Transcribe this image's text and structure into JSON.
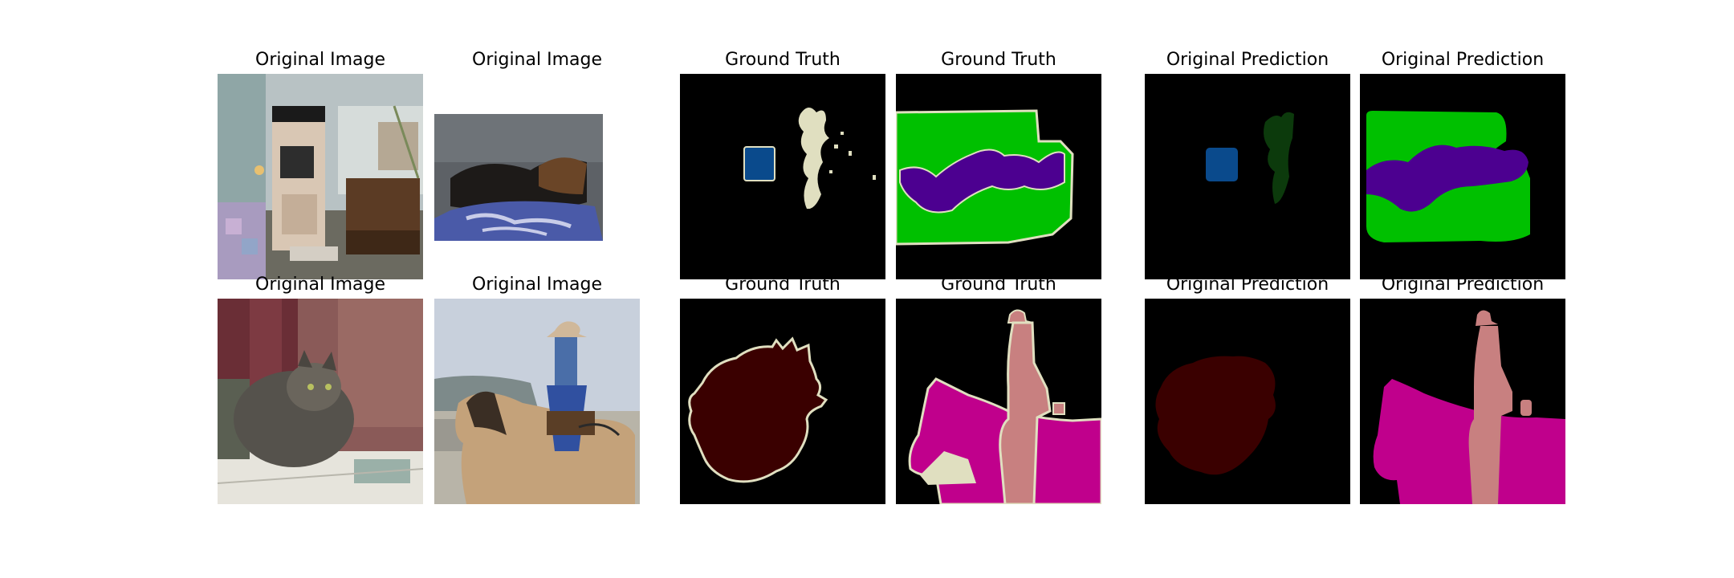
{
  "figure": {
    "panels": [
      {
        "id": "r1c1",
        "title": "Original Image",
        "kind": "photo",
        "subject": "living-room"
      },
      {
        "id": "r1c2",
        "title": "Original Image",
        "kind": "photo",
        "subject": "dogs-on-sofa"
      },
      {
        "id": "r1c3",
        "title": "Ground Truth",
        "kind": "mask",
        "subject": "room-gt"
      },
      {
        "id": "r1c4",
        "title": "Ground Truth",
        "kind": "mask",
        "subject": "sofa-gt"
      },
      {
        "id": "r1c5",
        "title": "Original Prediction",
        "kind": "mask",
        "subject": "room-pred"
      },
      {
        "id": "r1c6",
        "title": "Original Prediction",
        "kind": "mask",
        "subject": "sofa-pred"
      },
      {
        "id": "r2c1",
        "title": "Original Image",
        "kind": "photo",
        "subject": "cat"
      },
      {
        "id": "r2c2",
        "title": "Original Image",
        "kind": "photo",
        "subject": "cowboy-horse"
      },
      {
        "id": "r2c3",
        "title": "Ground Truth",
        "kind": "mask",
        "subject": "cat-gt"
      },
      {
        "id": "r2c4",
        "title": "Ground Truth",
        "kind": "mask",
        "subject": "horse-gt"
      },
      {
        "id": "r2c5",
        "title": "Original Prediction",
        "kind": "mask",
        "subject": "cat-pred"
      },
      {
        "id": "r2c6",
        "title": "Original Prediction",
        "kind": "mask",
        "subject": "horse-pred"
      }
    ],
    "palette": {
      "background": "#000000",
      "blue_class": "#0a4a8c",
      "cream_class": "#e0dfc0",
      "green_class": "#00c000",
      "purple_class": "#4c0090",
      "dark_green_class": "#0c3a0c",
      "maroon_class": "#3a0000",
      "magenta_class": "#c0008c",
      "pink_class": "#c88080",
      "boundary": "#e0dfc0"
    }
  }
}
